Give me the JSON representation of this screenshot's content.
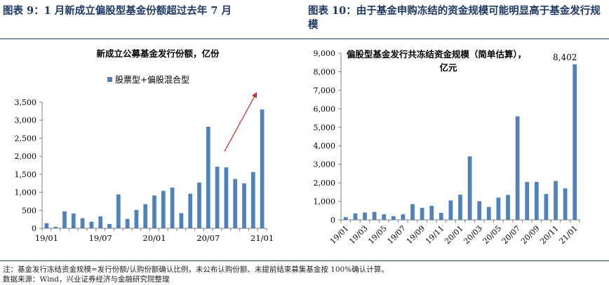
{
  "left_panel": {
    "heading": "图表 9：1 月新成立偏股型基金份额超过去年 7 月"
  },
  "right_panel": {
    "heading": "图表 10：由于基金申购冻结的资金规模可能明显高于基金发行规模"
  },
  "footnotes": {
    "note": "注：基金发行冻结资金规模=发行份额/认购份额确认比例，未公布认购份额、未提前结束募集基金按 100%确认计算。",
    "source": "数据来源：Wind，兴业证券经济与金融研究院整理"
  },
  "colors": {
    "bar": "#4f81bd",
    "arrow": "#c0392b",
    "heading": "#1f3864"
  },
  "chart_data": [
    {
      "type": "bar",
      "title": "新成立公募基金发行份额，亿份",
      "legend": [
        "股票型+偏股混合型"
      ],
      "legend_position": "top-right",
      "categories": [
        "19/01",
        "19/02",
        "19/03",
        "19/04",
        "19/05",
        "19/06",
        "19/07",
        "19/08",
        "19/09",
        "19/10",
        "19/11",
        "19/12",
        "20/01",
        "20/02",
        "20/03",
        "20/04",
        "20/05",
        "20/06",
        "20/07",
        "20/08",
        "20/09",
        "20/10",
        "20/11",
        "20/12",
        "21/01"
      ],
      "x_tick_labels": [
        "19/01",
        "19/07",
        "20/01",
        "20/07",
        "21/01"
      ],
      "series": [
        {
          "name": "股票型+偏股混合型",
          "values": [
            140,
            40,
            470,
            410,
            280,
            180,
            330,
            120,
            940,
            260,
            510,
            670,
            910,
            1040,
            1130,
            420,
            960,
            1270,
            2820,
            1710,
            1690,
            1370,
            1250,
            1560,
            3300
          ]
        }
      ],
      "ylim": [
        0,
        3500
      ],
      "yticks": [
        0,
        500,
        1000,
        1500,
        2000,
        2500,
        3000,
        3500
      ],
      "ytick_labels": [
        "0",
        "500",
        "1,000",
        "1,500",
        "2,000",
        "2,500",
        "3,000",
        "3,500"
      ],
      "grid": false,
      "annotation": "upward arrow over 20/09 – 21/01"
    },
    {
      "type": "bar",
      "title": "偏股型基金发行共冻结资金规模（简单估算），亿元",
      "categories": [
        "19/01",
        "19/02",
        "19/03",
        "19/04",
        "19/05",
        "19/06",
        "19/07",
        "19/08",
        "19/09",
        "19/10",
        "19/11",
        "19/12",
        "20/01",
        "20/02",
        "20/03",
        "20/04",
        "20/05",
        "20/06",
        "20/07",
        "20/08",
        "20/09",
        "20/10",
        "20/11",
        "20/12",
        "21/01"
      ],
      "x_tick_labels": [
        "19/01",
        "19/03",
        "19/05",
        "19/07",
        "19/09",
        "19/11",
        "20/01",
        "20/03",
        "20/05",
        "20/07",
        "20/09",
        "20/11",
        "21/01"
      ],
      "series": [
        {
          "values": [
            150,
            350,
            400,
            430,
            300,
            200,
            300,
            850,
            650,
            760,
            380,
            1050,
            1360,
            3430,
            1010,
            700,
            1200,
            1350,
            5590,
            2050,
            2050,
            1400,
            2100,
            1700,
            8402
          ]
        }
      ],
      "data_labels": [
        {
          "category": "21/01",
          "text": "8,402"
        }
      ],
      "ylim": [
        0,
        9000
      ],
      "yticks": [
        0,
        1000,
        2000,
        3000,
        4000,
        5000,
        6000,
        7000,
        8000,
        9000
      ],
      "ytick_labels": [
        "0",
        "1,000",
        "2,000",
        "3,000",
        "4,000",
        "5,000",
        "6,000",
        "7,000",
        "8,000",
        "9,000"
      ],
      "grid": false
    }
  ]
}
